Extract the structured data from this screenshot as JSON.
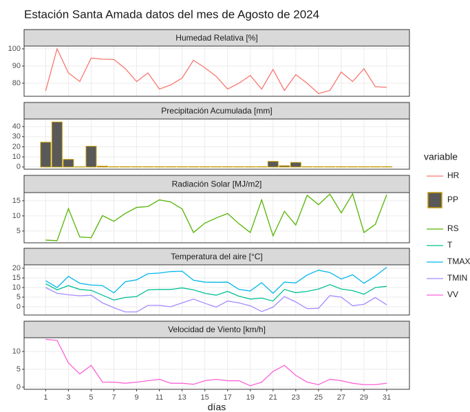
{
  "title": "Estación Santa Amada datos del mes de Agosto de 2024",
  "xlabel": "días",
  "legend_title": "variable",
  "chart_data": [
    {
      "type": "line",
      "title": "Humedad Relativa [%]",
      "x": [
        1,
        2,
        3,
        4,
        5,
        6,
        7,
        8,
        9,
        10,
        11,
        12,
        13,
        14,
        15,
        16,
        17,
        18,
        19,
        20,
        21,
        22,
        23,
        24,
        25,
        26,
        27,
        28,
        29,
        30,
        31
      ],
      "xlim": [
        -0.9,
        33
      ],
      "xticks": [
        1,
        3,
        5,
        7,
        9,
        11,
        13,
        15,
        17,
        19,
        21,
        23,
        25,
        27,
        29,
        31
      ],
      "ylim": [
        72.4,
        101.6
      ],
      "yticks": [
        80,
        90,
        100
      ],
      "grid": true,
      "series": [
        {
          "name": "HR",
          "color": "#F8766D",
          "values": [
            75.6,
            100,
            86,
            81,
            94.6,
            94,
            93.8,
            88.5,
            81,
            86,
            76.6,
            79,
            83,
            93.4,
            89,
            84,
            76.6,
            80,
            84.5,
            76.6,
            88,
            75.8,
            85,
            80,
            74,
            75.8,
            86.5,
            81,
            88.4,
            78,
            77.6
          ]
        }
      ]
    },
    {
      "type": "bar",
      "title": "Precipitación Acumulada [mm]",
      "x": [
        1,
        2,
        3,
        4,
        5,
        6,
        7,
        8,
        9,
        10,
        11,
        12,
        13,
        14,
        15,
        16,
        17,
        18,
        19,
        20,
        21,
        22,
        23,
        24,
        25,
        26,
        27,
        28,
        29,
        30,
        31
      ],
      "xlim": [
        -0.9,
        33
      ],
      "xticks": [
        1,
        3,
        5,
        7,
        9,
        11,
        13,
        15,
        17,
        19,
        21,
        23,
        25,
        27,
        29,
        31
      ],
      "ylim": [
        -2.2,
        47.5
      ],
      "yticks": [
        0,
        10,
        20,
        30,
        40
      ],
      "grid": true,
      "series": [
        {
          "name": "PP",
          "color": "#595959",
          "edgecolor": "#C49A00",
          "values": [
            24.5,
            44.5,
            7.5,
            0.2,
            20.5,
            0.8,
            0.3,
            0.3,
            0.3,
            0.3,
            0.3,
            0.3,
            0.3,
            0.3,
            0.3,
            0.3,
            0.3,
            0.3,
            0.3,
            0.3,
            5.5,
            1.2,
            4.5,
            0.3,
            0.3,
            0.3,
            0.3,
            0.3,
            0.3,
            0.3,
            0.3
          ]
        }
      ]
    },
    {
      "type": "line",
      "title": "Radiación Solar [MJ/m2]",
      "x": [
        1,
        2,
        3,
        4,
        5,
        6,
        7,
        8,
        9,
        10,
        11,
        12,
        13,
        14,
        15,
        16,
        17,
        18,
        19,
        20,
        21,
        22,
        23,
        24,
        25,
        26,
        27,
        28,
        29,
        30,
        31
      ],
      "xlim": [
        -0.9,
        33
      ],
      "xticks": [
        1,
        3,
        5,
        7,
        9,
        11,
        13,
        15,
        17,
        19,
        21,
        23,
        25,
        27,
        29,
        31
      ],
      "ylim": [
        1.1,
        17.7
      ],
      "yticks": [
        5,
        10,
        15
      ],
      "grid": true,
      "series": [
        {
          "name": "RS",
          "color": "#53B400",
          "values": [
            2,
            1.8,
            12.4,
            3,
            2.8,
            10.1,
            8.2,
            10.8,
            12.8,
            13.1,
            15.3,
            14.6,
            12.3,
            4.5,
            7.6,
            9.3,
            10.8,
            7.4,
            4.5,
            15.3,
            3.4,
            11.5,
            7,
            16.8,
            13.7,
            17.2,
            11,
            17.3,
            4.5,
            7.2,
            17
          ]
        }
      ]
    },
    {
      "type": "line",
      "title": "Temperatura del aire [°C]",
      "x": [
        1,
        2,
        3,
        4,
        5,
        6,
        7,
        8,
        9,
        10,
        11,
        12,
        13,
        14,
        15,
        16,
        17,
        18,
        19,
        20,
        21,
        22,
        23,
        24,
        25,
        26,
        27,
        28,
        29,
        30,
        31
      ],
      "xlim": [
        -0.9,
        33
      ],
      "xticks": [
        1,
        3,
        5,
        7,
        9,
        11,
        13,
        15,
        17,
        19,
        21,
        23,
        25,
        27,
        29,
        31
      ],
      "ylim": [
        -4.3,
        21.8
      ],
      "yticks": [
        0,
        5,
        10,
        15,
        20
      ],
      "grid": true,
      "series": [
        {
          "name": "T",
          "color": "#00C094",
          "values": [
            12,
            8.8,
            11,
            9,
            8.5,
            6,
            3.5,
            4.8,
            5.3,
            8.8,
            9,
            9,
            9.8,
            8.8,
            7,
            6,
            8,
            5.5,
            4,
            4.5,
            3,
            9,
            7.3,
            8,
            9.2,
            11.5,
            9.2,
            8.4,
            6.5,
            10,
            10.6
          ]
        },
        {
          "name": "TMAX",
          "color": "#00B6EB",
          "values": [
            13.5,
            10,
            15.8,
            12.2,
            11.3,
            11,
            7.2,
            13,
            14,
            17.2,
            17.5,
            18.3,
            18.5,
            13.8,
            12.8,
            12.7,
            12.8,
            9,
            8.2,
            12.5,
            7,
            12.8,
            12.4,
            16.5,
            19,
            17.8,
            14.4,
            16.6,
            12.2,
            16,
            20.5
          ]
        },
        {
          "name": "TMIN",
          "color": "#A58AFF",
          "values": [
            10,
            7,
            6.2,
            5.7,
            6,
            2,
            -0.5,
            -2.7,
            -2.7,
            0.7,
            0.7,
            0,
            2,
            4,
            1.8,
            -0.2,
            3,
            2,
            0.5,
            -2.5,
            -0.2,
            5.3,
            2.5,
            -1,
            -0.8,
            5.8,
            5,
            0.5,
            1.3,
            4.8,
            1
          ]
        }
      ]
    },
    {
      "type": "line",
      "title": "Velocidad de Viento [km/h]",
      "x": [
        1,
        2,
        3,
        4,
        5,
        6,
        7,
        8,
        9,
        10,
        11,
        12,
        13,
        14,
        15,
        16,
        17,
        18,
        19,
        20,
        21,
        22,
        23,
        24,
        25,
        26,
        27,
        28,
        29,
        30,
        31
      ],
      "xlim": [
        -0.9,
        33
      ],
      "xticks": [
        1,
        3,
        5,
        7,
        9,
        11,
        13,
        15,
        17,
        19,
        21,
        23,
        25,
        27,
        29,
        31
      ],
      "ylim": [
        -0.6,
        13.85
      ],
      "yticks": [
        0,
        5,
        10
      ],
      "grid": true,
      "series": [
        {
          "name": "VV",
          "color": "#FB61D7",
          "values": [
            13.4,
            13.1,
            6.8,
            3.7,
            6.1,
            1.4,
            1.4,
            1.1,
            1.4,
            1.8,
            2.2,
            1.1,
            1.1,
            0.8,
            1.8,
            2.2,
            1.8,
            1.8,
            0.4,
            1.4,
            4.4,
            6.1,
            3.3,
            1.4,
            0.7,
            2.2,
            1.8,
            1.1,
            0.7,
            0.7,
            1.1
          ]
        }
      ]
    }
  ]
}
